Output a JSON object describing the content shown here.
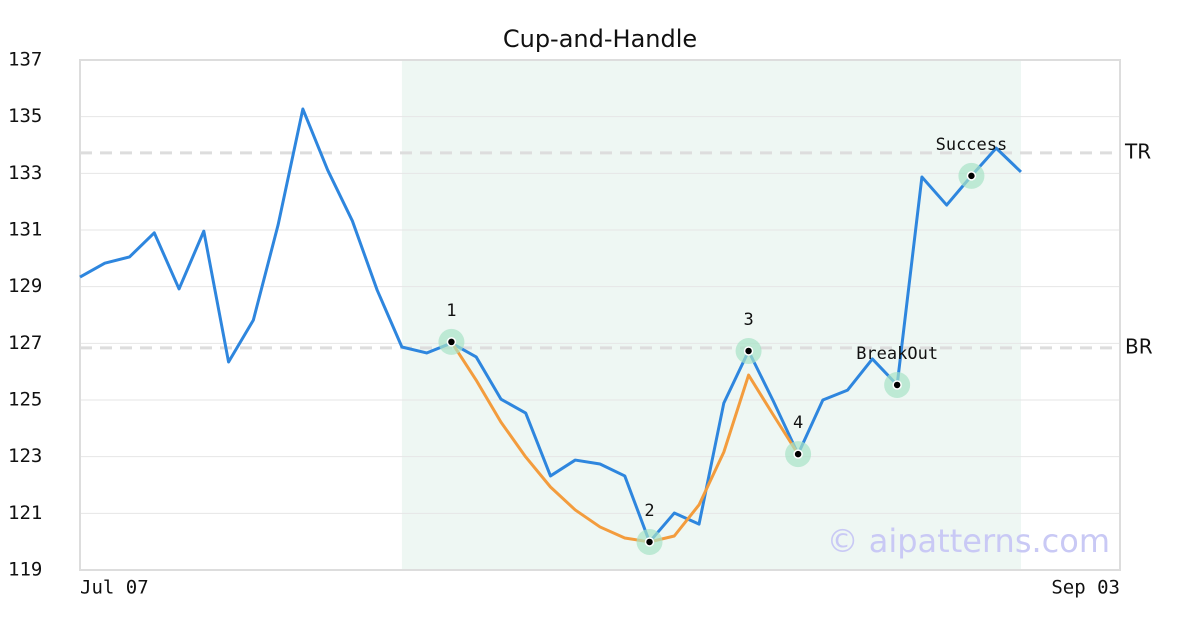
{
  "chart_data": {
    "type": "line",
    "title": "Cup-and-Handle",
    "x": [
      0,
      1,
      2,
      3,
      4,
      5,
      6,
      7,
      8,
      9,
      10,
      11,
      12,
      13,
      14,
      15,
      16,
      17,
      18,
      19,
      20,
      21,
      22,
      23,
      24,
      25,
      26,
      27,
      28,
      29,
      30,
      31,
      32,
      33,
      34,
      35,
      36,
      37,
      38
    ],
    "series": [
      {
        "color": "#2e86de",
        "values": [
          129.34,
          129.83,
          130.05,
          130.9,
          128.92,
          130.96,
          126.34,
          127.82,
          131.18,
          135.27,
          133.12,
          131.32,
          128.88,
          126.87,
          126.66,
          127.01,
          126.52,
          125.03,
          124.54,
          122.32,
          122.88,
          122.74,
          122.32,
          119.99,
          121.01,
          120.62,
          124.89,
          126.73,
          124.96,
          123.09,
          125.0,
          125.35,
          126.45,
          125.53,
          132.87,
          131.88,
          132.91,
          133.89,
          133.05
        ]
      },
      {
        "color": "#f39c3d",
        "values": [
          null,
          null,
          null,
          null,
          null,
          null,
          null,
          null,
          null,
          null,
          null,
          null,
          null,
          null,
          null,
          127.05,
          125.7,
          124.22,
          122.99,
          121.93,
          121.12,
          120.52,
          120.13,
          119.99,
          120.2,
          121.3,
          123.16,
          125.88,
          124.47,
          123.09,
          null,
          null,
          null,
          null,
          null,
          null,
          null,
          null,
          null
        ]
      }
    ],
    "xlim": [
      0,
      42
    ],
    "xticks": [
      {
        "value": 0,
        "label": "Jul 07"
      },
      {
        "value": 42,
        "label": "Sep 03"
      }
    ],
    "ylim": [
      119,
      137
    ],
    "yticks": [
      119,
      121,
      123,
      125,
      127,
      129,
      131,
      133,
      135,
      137
    ],
    "grid": true,
    "span": [
      13,
      38
    ],
    "hlines": [
      {
        "value": 133.72,
        "label": "TR"
      },
      {
        "value": 126.84,
        "label": "BR"
      }
    ],
    "points": [
      {
        "x": 15,
        "y": 127.05,
        "label": "1"
      },
      {
        "x": 23,
        "y": 119.99,
        "label": "2"
      },
      {
        "x": 27,
        "y": 126.73,
        "label": "3"
      },
      {
        "x": 29,
        "y": 123.09,
        "label": "4"
      },
      {
        "x": 33,
        "y": 125.53,
        "label": "BreakOut"
      },
      {
        "x": 36,
        "y": 132.91,
        "label": "Success"
      }
    ],
    "watermark": "© aipatterns.com"
  }
}
